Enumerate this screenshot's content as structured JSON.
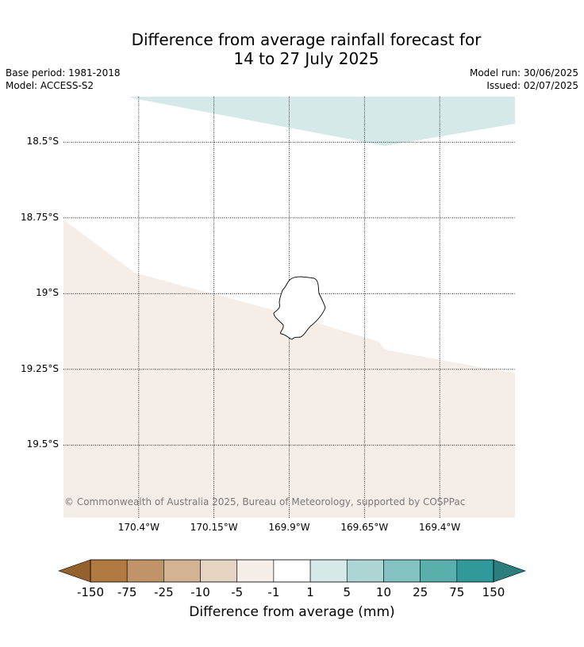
{
  "title_line1": "Difference from average rainfall forecast for",
  "title_line2": "14 to 27 July 2025",
  "meta": {
    "base_period": "Base period: 1981-2018",
    "model": "Model: ACCESS-S2",
    "model_run": "Model run: 30/06/2025",
    "issued": "Issued: 02/07/2025"
  },
  "map": {
    "latitudes": [
      {
        "value": -18.5,
        "label": "18.5°S"
      },
      {
        "value": -18.75,
        "label": "18.75°S"
      },
      {
        "value": -19.0,
        "label": "19°S"
      },
      {
        "value": -19.25,
        "label": "19.25°S"
      },
      {
        "value": -19.5,
        "label": "19.5°S"
      }
    ],
    "longitudes": [
      {
        "value": -170.4,
        "label": "170.4°W"
      },
      {
        "value": -170.15,
        "label": "170.15°W"
      },
      {
        "value": -169.9,
        "label": "169.9°W"
      },
      {
        "value": -169.65,
        "label": "169.65°W"
      },
      {
        "value": -169.4,
        "label": "169.4°W"
      }
    ],
    "extent": {
      "lon_min": -170.65,
      "lon_max": -169.15,
      "lat_min": -19.74,
      "lat_max": -18.35
    },
    "regions": [
      {
        "category": "1 to 5",
        "color": "#d4e9e8"
      },
      {
        "category": "-5 to -1",
        "color": "#f5ede8"
      }
    ],
    "land_outline": "Niue",
    "copyright": "© Commonwealth of Australia 2025, Bureau of Meteorology, supported by COSPPac"
  },
  "colorbar": {
    "label": "Difference from average (mm)",
    "ticks": [
      "-150",
      "-75",
      "-25",
      "-10",
      "-5",
      "-1",
      "1",
      "5",
      "10",
      "25",
      "75",
      "150"
    ],
    "colors": [
      "#b07a40",
      "#c09468",
      "#d4b392",
      "#e6d3c2",
      "#f5ede8",
      "#ffffff",
      "#d4e9e8",
      "#acd5d4",
      "#84c2c1",
      "#5aaeab",
      "#32999a"
    ],
    "extend_low_color": "#94602c",
    "extend_high_color": "#2b7d7e"
  }
}
